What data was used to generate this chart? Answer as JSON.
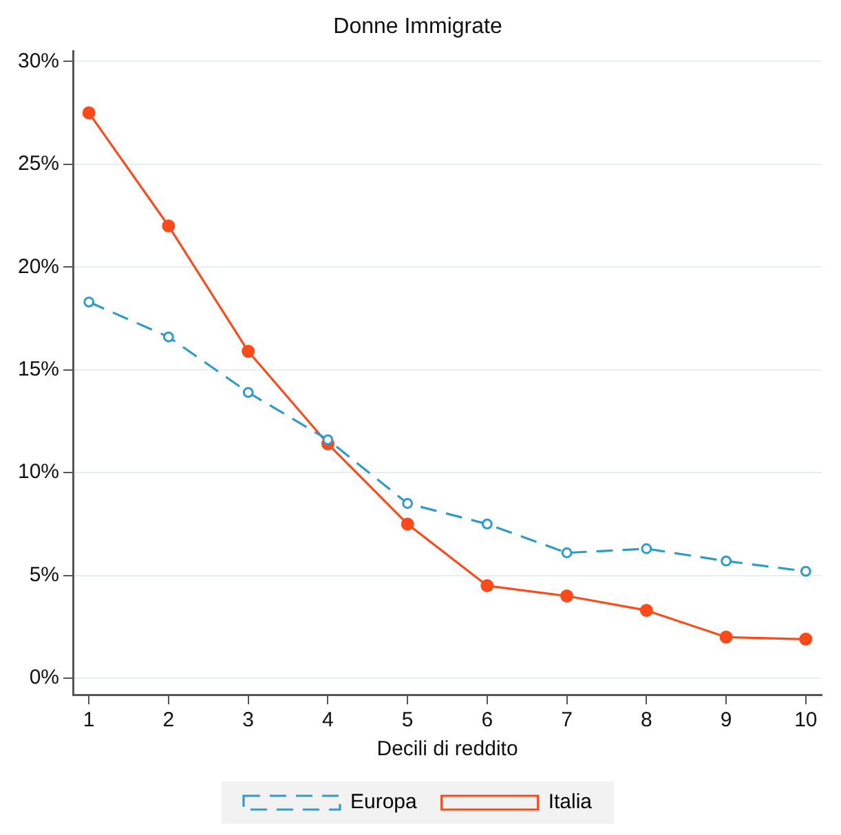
{
  "chart_data": {
    "type": "line",
    "title": "Donne Immigrate",
    "xlabel": "Decili di reddito",
    "x": [
      1,
      2,
      3,
      4,
      5,
      6,
      7,
      8,
      9,
      10
    ],
    "series": [
      {
        "name": "Europa",
        "color": "#2f9bcc",
        "line_style": "dashed",
        "values": [
          18.3,
          16.6,
          13.9,
          11.6,
          8.5,
          7.5,
          6.1,
          6.3,
          5.7,
          5.2
        ]
      },
      {
        "name": "Italia",
        "color": "#fc4a1a",
        "line_style": "solid",
        "values": [
          27.5,
          22.0,
          15.9,
          11.4,
          7.5,
          4.5,
          4.0,
          3.3,
          2.0,
          1.9
        ]
      }
    ],
    "xlim": [
      0.8,
      10.2
    ],
    "xticks": [
      1,
      2,
      3,
      4,
      5,
      6,
      7,
      8,
      9,
      10
    ],
    "ylim": [
      -0.8,
      30.5
    ],
    "yticks": [
      {
        "value": 0,
        "label": "0%"
      },
      {
        "value": 5,
        "label": "5%"
      },
      {
        "value": 10,
        "label": "10%"
      },
      {
        "value": 15,
        "label": "15%"
      },
      {
        "value": 20,
        "label": "20%"
      },
      {
        "value": 25,
        "label": "25%"
      },
      {
        "value": 30,
        "label": "30%"
      }
    ],
    "grid": "y",
    "legend": "bottom",
    "marker": "circle"
  }
}
